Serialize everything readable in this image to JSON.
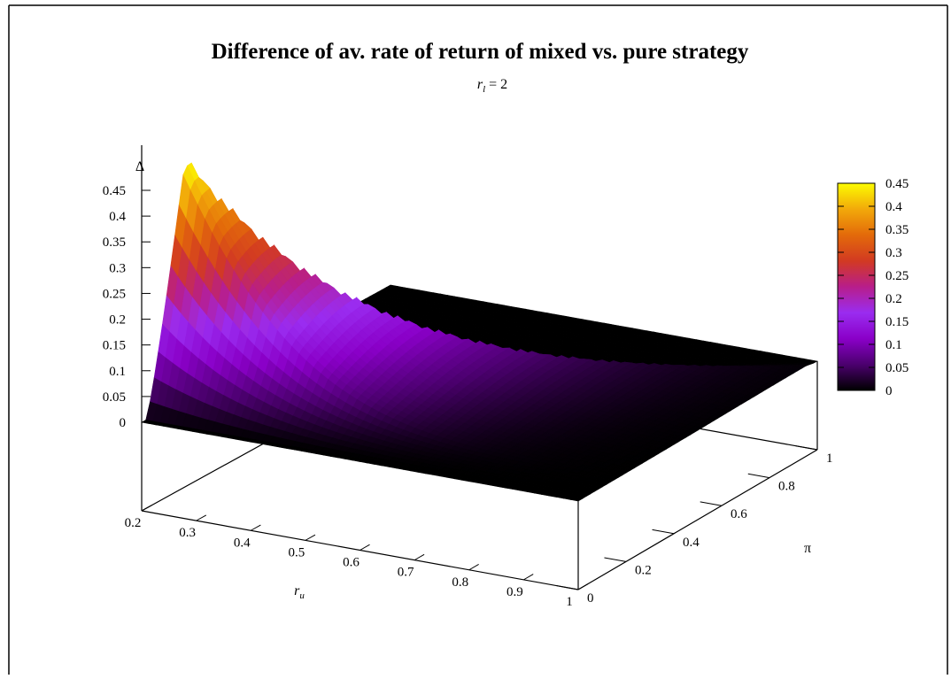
{
  "chart_data": {
    "type": "surface",
    "title": "Difference of av. rate of return of mixed vs. pure strategy",
    "subtitle": {
      "var": "r",
      "sub": "l",
      "rest": " = 2"
    },
    "xlabel": {
      "var": "r",
      "sub": "u"
    },
    "ylabel": "π",
    "zlabel": "Δ",
    "xlim": [
      0.2,
      1
    ],
    "ylim": [
      0,
      1
    ],
    "zlim": [
      0,
      0.45
    ],
    "x_ticks": [
      "0.2",
      "0.3",
      "0.4",
      "0.5",
      "0.6",
      "0.7",
      "0.8",
      "0.9",
      "1"
    ],
    "y_ticks": [
      "0",
      "0.2",
      "0.4",
      "0.6",
      "0.8",
      "1"
    ],
    "z_ticks": [
      "0",
      "0.05",
      "0.1",
      "0.15",
      "0.2",
      "0.25",
      "0.3",
      "0.35",
      "0.4",
      "0.45"
    ],
    "colorbar_ticks": [
      "0",
      "0.05",
      "0.1",
      "0.15",
      "0.2",
      "0.25",
      "0.3",
      "0.35",
      "0.4",
      "0.45"
    ],
    "colorbar_range": [
      0,
      0.45
    ],
    "palette": [
      "#000000",
      "#4b006e",
      "#8a00c8",
      "#9a2cf0",
      "#b81e8a",
      "#d23a22",
      "#e36a0a",
      "#f2a90a",
      "#fcfc00"
    ],
    "surface": {
      "description_x": "r_u",
      "peak": {
        "r_u": 0.2,
        "pi": 1.0,
        "delta": 0.45
      },
      "ridge_start_pi": [
        0.2,
        0.95
      ],
      "ridge_zero_pi_at_ru1": 0.95,
      "flat_value": 0
    },
    "grid": false
  }
}
